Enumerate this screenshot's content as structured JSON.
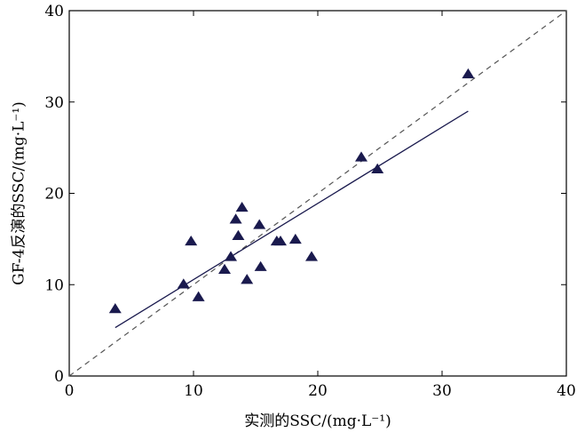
{
  "chart_data": {
    "type": "scatter",
    "xlabel": "实测的SSC/(mg·L⁻¹)",
    "ylabel": "GF-4反演的SSC/(mg·L⁻¹)",
    "xlim": [
      0,
      40
    ],
    "ylim": [
      0,
      40
    ],
    "x_ticks": [
      "0",
      "10",
      "20",
      "30",
      "40"
    ],
    "y_ticks": [
      "0",
      "10",
      "20",
      "30",
      "40"
    ],
    "grid": false,
    "marker": "triangle",
    "colors": {
      "marker": "#1a1a4e",
      "fit_line": "#1a1a4e",
      "one_to_one_line": "#555555"
    },
    "points": [
      {
        "x": 3.7,
        "y": 7.3
      },
      {
        "x": 9.2,
        "y": 10.0
      },
      {
        "x": 9.8,
        "y": 14.7
      },
      {
        "x": 10.4,
        "y": 8.6
      },
      {
        "x": 12.5,
        "y": 11.6
      },
      {
        "x": 13.0,
        "y": 13.0
      },
      {
        "x": 13.4,
        "y": 17.1
      },
      {
        "x": 13.6,
        "y": 15.3
      },
      {
        "x": 13.9,
        "y": 18.4
      },
      {
        "x": 14.3,
        "y": 10.5
      },
      {
        "x": 15.3,
        "y": 16.5
      },
      {
        "x": 15.4,
        "y": 11.9
      },
      {
        "x": 16.7,
        "y": 14.7
      },
      {
        "x": 17.0,
        "y": 14.7
      },
      {
        "x": 18.2,
        "y": 14.9
      },
      {
        "x": 19.5,
        "y": 13.0
      },
      {
        "x": 23.5,
        "y": 23.9
      },
      {
        "x": 24.8,
        "y": 22.6
      },
      {
        "x": 32.1,
        "y": 33.0
      }
    ],
    "fit_line": {
      "x": [
        3.7,
        32.1
      ],
      "y": [
        5.3,
        29.0
      ]
    },
    "one_to_one_line": {
      "x": [
        0,
        40
      ],
      "y": [
        0,
        40
      ]
    }
  }
}
